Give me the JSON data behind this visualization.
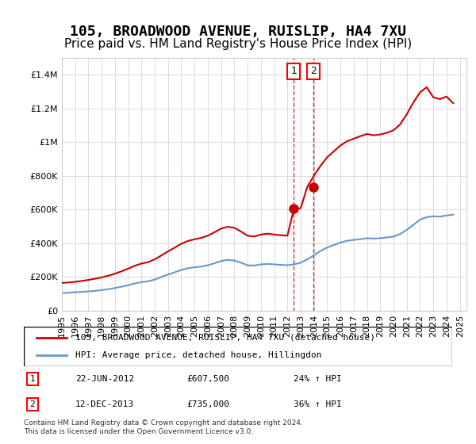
{
  "title": "105, BROADWOOD AVENUE, RUISLIP, HA4 7XU",
  "subtitle": "Price paid vs. HM Land Registry's House Price Index (HPI)",
  "title_fontsize": 13,
  "subtitle_fontsize": 11,
  "red_label": "105, BROADWOOD AVENUE, RUISLIP, HA4 7XU (detached house)",
  "blue_label": "HPI: Average price, detached house, Hillingdon",
  "sale1_date": "22-JUN-2012",
  "sale1_price": 607500,
  "sale1_pct": "24%",
  "sale2_date": "12-DEC-2013",
  "sale2_price": 735000,
  "sale2_pct": "36%",
  "footnote": "Contains HM Land Registry data © Crown copyright and database right 2024.\nThis data is licensed under the Open Government Licence v3.0.",
  "red_color": "#cc0000",
  "blue_color": "#6699cc",
  "background_color": "#ffffff",
  "grid_color": "#dddddd",
  "ylim": [
    0,
    1500000
  ],
  "hpi_x": [
    1995.0,
    1995.5,
    1996.0,
    1996.5,
    1997.0,
    1997.5,
    1998.0,
    1998.5,
    1999.0,
    1999.5,
    2000.0,
    2000.5,
    2001.0,
    2001.5,
    2002.0,
    2002.5,
    2003.0,
    2003.5,
    2004.0,
    2004.5,
    2005.0,
    2005.5,
    2006.0,
    2006.5,
    2007.0,
    2007.5,
    2008.0,
    2008.5,
    2009.0,
    2009.5,
    2010.0,
    2010.5,
    2011.0,
    2011.5,
    2012.0,
    2012.5,
    2013.0,
    2013.5,
    2014.0,
    2014.5,
    2015.0,
    2015.5,
    2016.0,
    2016.5,
    2017.0,
    2017.5,
    2018.0,
    2018.5,
    2019.0,
    2019.5,
    2020.0,
    2020.5,
    2021.0,
    2021.5,
    2022.0,
    2022.5,
    2023.0,
    2023.5,
    2024.0,
    2024.5
  ],
  "hpi_y": [
    105000,
    107000,
    110000,
    112000,
    115000,
    118000,
    123000,
    128000,
    135000,
    143000,
    152000,
    162000,
    170000,
    175000,
    185000,
    200000,
    215000,
    228000,
    242000,
    252000,
    258000,
    262000,
    270000,
    282000,
    295000,
    302000,
    298000,
    285000,
    270000,
    268000,
    275000,
    278000,
    275000,
    272000,
    270000,
    275000,
    285000,
    305000,
    330000,
    355000,
    375000,
    390000,
    405000,
    415000,
    420000,
    425000,
    430000,
    428000,
    430000,
    435000,
    440000,
    455000,
    480000,
    510000,
    540000,
    555000,
    560000,
    558000,
    565000,
    570000
  ],
  "red_x": [
    1995.0,
    1995.5,
    1996.0,
    1996.5,
    1997.0,
    1997.5,
    1998.0,
    1998.5,
    1999.0,
    1999.5,
    2000.0,
    2000.5,
    2001.0,
    2001.5,
    2002.0,
    2002.5,
    2003.0,
    2003.5,
    2004.0,
    2004.5,
    2005.0,
    2005.5,
    2006.0,
    2006.5,
    2007.0,
    2007.5,
    2008.0,
    2008.5,
    2009.0,
    2009.5,
    2010.0,
    2010.5,
    2011.0,
    2011.5,
    2012.0,
    2012.5,
    2013.0,
    2013.5,
    2014.0,
    2014.5,
    2015.0,
    2015.5,
    2016.0,
    2016.5,
    2017.0,
    2017.5,
    2018.0,
    2018.5,
    2019.0,
    2019.5,
    2020.0,
    2020.5,
    2021.0,
    2021.5,
    2022.0,
    2022.5,
    2023.0,
    2023.5,
    2024.0,
    2024.5
  ],
  "red_y": [
    165000,
    168000,
    172000,
    177000,
    183000,
    190000,
    198000,
    208000,
    220000,
    234000,
    250000,
    267000,
    280000,
    288000,
    305000,
    328000,
    352000,
    374000,
    397000,
    414000,
    424000,
    432000,
    445000,
    465000,
    487000,
    498000,
    492000,
    470000,
    445000,
    440000,
    452000,
    457000,
    452000,
    448000,
    445000,
    607500,
    607500,
    735000,
    800000,
    860000,
    910000,
    945000,
    980000,
    1005000,
    1020000,
    1035000,
    1048000,
    1040000,
    1045000,
    1055000,
    1070000,
    1105000,
    1165000,
    1235000,
    1295000,
    1325000,
    1265000,
    1255000,
    1270000,
    1230000
  ],
  "sale1_x": 2012.47,
  "sale2_x": 2013.95,
  "marker_color": "#cc0000",
  "vline_color": "#cc0000"
}
